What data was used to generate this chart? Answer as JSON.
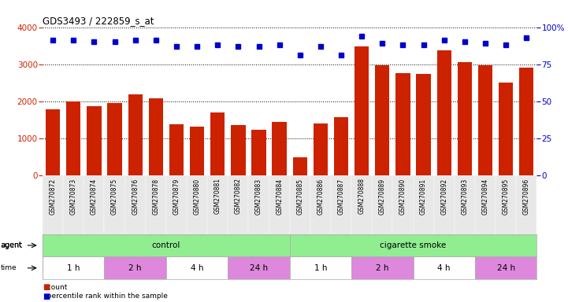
{
  "title": "GDS3493 / 222859_s_at",
  "samples": [
    "GSM270872",
    "GSM270873",
    "GSM270874",
    "GSM270875",
    "GSM270876",
    "GSM270878",
    "GSM270879",
    "GSM270880",
    "GSM270881",
    "GSM270882",
    "GSM270883",
    "GSM270884",
    "GSM270885",
    "GSM270886",
    "GSM270887",
    "GSM270888",
    "GSM270889",
    "GSM270890",
    "GSM270891",
    "GSM270892",
    "GSM270893",
    "GSM270894",
    "GSM270895",
    "GSM270896"
  ],
  "counts": [
    1780,
    2000,
    1870,
    1950,
    2190,
    2070,
    1380,
    1310,
    1700,
    1360,
    1230,
    1450,
    480,
    1400,
    1560,
    3480,
    2960,
    2750,
    2740,
    3380,
    3060,
    2980,
    2510,
    2900
  ],
  "percentile": [
    91,
    91,
    90,
    90,
    91,
    91,
    87,
    87,
    88,
    87,
    87,
    88,
    81,
    87,
    81,
    94,
    89,
    88,
    88,
    91,
    90,
    89,
    88,
    93
  ],
  "bar_color": "#cc2200",
  "dot_color": "#0000cc",
  "ylim_left": [
    0,
    4000
  ],
  "ylim_right": [
    0,
    100
  ],
  "yticks_left": [
    0,
    1000,
    2000,
    3000,
    4000
  ],
  "yticks_right": [
    0,
    25,
    50,
    75,
    100
  ],
  "agent_groups": [
    {
      "label": "control",
      "start": 0,
      "end": 12,
      "color": "#90ee90"
    },
    {
      "label": "cigarette smoke",
      "start": 12,
      "end": 24,
      "color": "#90ee90"
    }
  ],
  "time_groups": [
    {
      "label": "1 h",
      "start": 0,
      "end": 3,
      "color": "#ffffff"
    },
    {
      "label": "2 h",
      "start": 3,
      "end": 6,
      "color": "#dd88dd"
    },
    {
      "label": "4 h",
      "start": 6,
      "end": 9,
      "color": "#ffffff"
    },
    {
      "label": "24 h",
      "start": 9,
      "end": 12,
      "color": "#dd88dd"
    },
    {
      "label": "1 h",
      "start": 12,
      "end": 15,
      "color": "#ffffff"
    },
    {
      "label": "2 h",
      "start": 15,
      "end": 18,
      "color": "#dd88dd"
    },
    {
      "label": "4 h",
      "start": 18,
      "end": 21,
      "color": "#ffffff"
    },
    {
      "label": "24 h",
      "start": 21,
      "end": 24,
      "color": "#dd88dd"
    }
  ],
  "legend_count_color": "#cc2200",
  "legend_dot_color": "#0000cc",
  "background_color": "#ffffff",
  "plot_bg_color": "#ffffff",
  "xticklabel_bg": "#e8e8e8"
}
